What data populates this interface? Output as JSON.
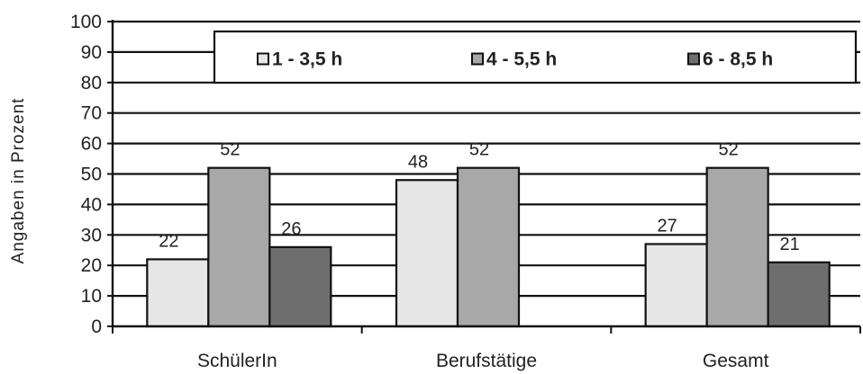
{
  "chart_data": {
    "type": "bar",
    "title": "",
    "xlabel": "",
    "ylabel": "Angaben in Prozent",
    "ylim": [
      0,
      100
    ],
    "yticks": [
      0,
      10,
      20,
      30,
      40,
      50,
      60,
      70,
      80,
      90,
      100
    ],
    "grid": true,
    "legend_position": "top",
    "categories": [
      "SchülerIn",
      "Berufstätige",
      "Gesamt"
    ],
    "series": [
      {
        "name": "1 - 3,5 h",
        "color": "#e6e6e6",
        "values": [
          22,
          48,
          27
        ]
      },
      {
        "name": "4 - 5,5 h",
        "color": "#a8a8a8",
        "values": [
          52,
          52,
          52
        ]
      },
      {
        "name": "6 - 8,5 h",
        "color": "#6e6e6e",
        "values": [
          26,
          null,
          21
        ]
      }
    ]
  }
}
